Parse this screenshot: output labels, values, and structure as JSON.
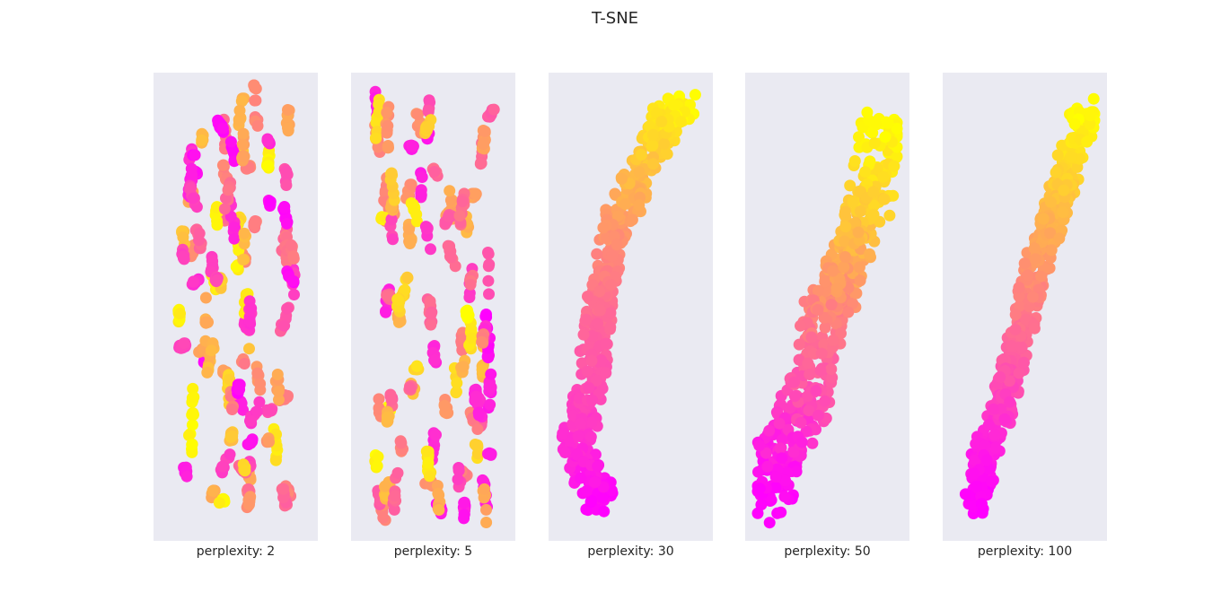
{
  "chart_data": {
    "type": "scatter",
    "title": "T-SNE",
    "colormap": "spring",
    "color_start": "#ff00ff",
    "color_end": "#ffff00",
    "background": "#eaeaf2",
    "axes_visible": false,
    "grid": false,
    "panels": [
      {
        "label": "perplexity: 2",
        "layout": "clusters",
        "seed": 2
      },
      {
        "label": "perplexity: 5",
        "layout": "clusters",
        "seed": 5
      },
      {
        "label": "perplexity: 30",
        "layout": "band",
        "seed": 30,
        "band_path": [
          [
            0.3,
            0.95
          ],
          [
            0.1,
            0.82
          ],
          [
            0.22,
            0.68
          ],
          [
            0.25,
            0.55
          ],
          [
            0.3,
            0.45
          ],
          [
            0.35,
            0.35
          ],
          [
            0.5,
            0.25
          ],
          [
            0.75,
            0.08
          ],
          [
            0.9,
            0.04
          ]
        ],
        "band_width": 0.1
      },
      {
        "label": "perplexity: 50",
        "layout": "band",
        "seed": 50,
        "band_path": [
          [
            0.12,
            0.95
          ],
          [
            0.15,
            0.82
          ],
          [
            0.35,
            0.72
          ],
          [
            0.45,
            0.55
          ],
          [
            0.65,
            0.4
          ],
          [
            0.8,
            0.25
          ],
          [
            0.9,
            0.08
          ]
        ],
        "band_width": 0.15
      },
      {
        "label": "perplexity: 100",
        "layout": "band",
        "seed": 100,
        "band_path": [
          [
            0.15,
            0.95
          ],
          [
            0.2,
            0.85
          ],
          [
            0.4,
            0.65
          ],
          [
            0.55,
            0.45
          ],
          [
            0.75,
            0.25
          ],
          [
            0.9,
            0.1
          ],
          [
            0.95,
            0.05
          ]
        ],
        "band_width": 0.09
      }
    ]
  }
}
